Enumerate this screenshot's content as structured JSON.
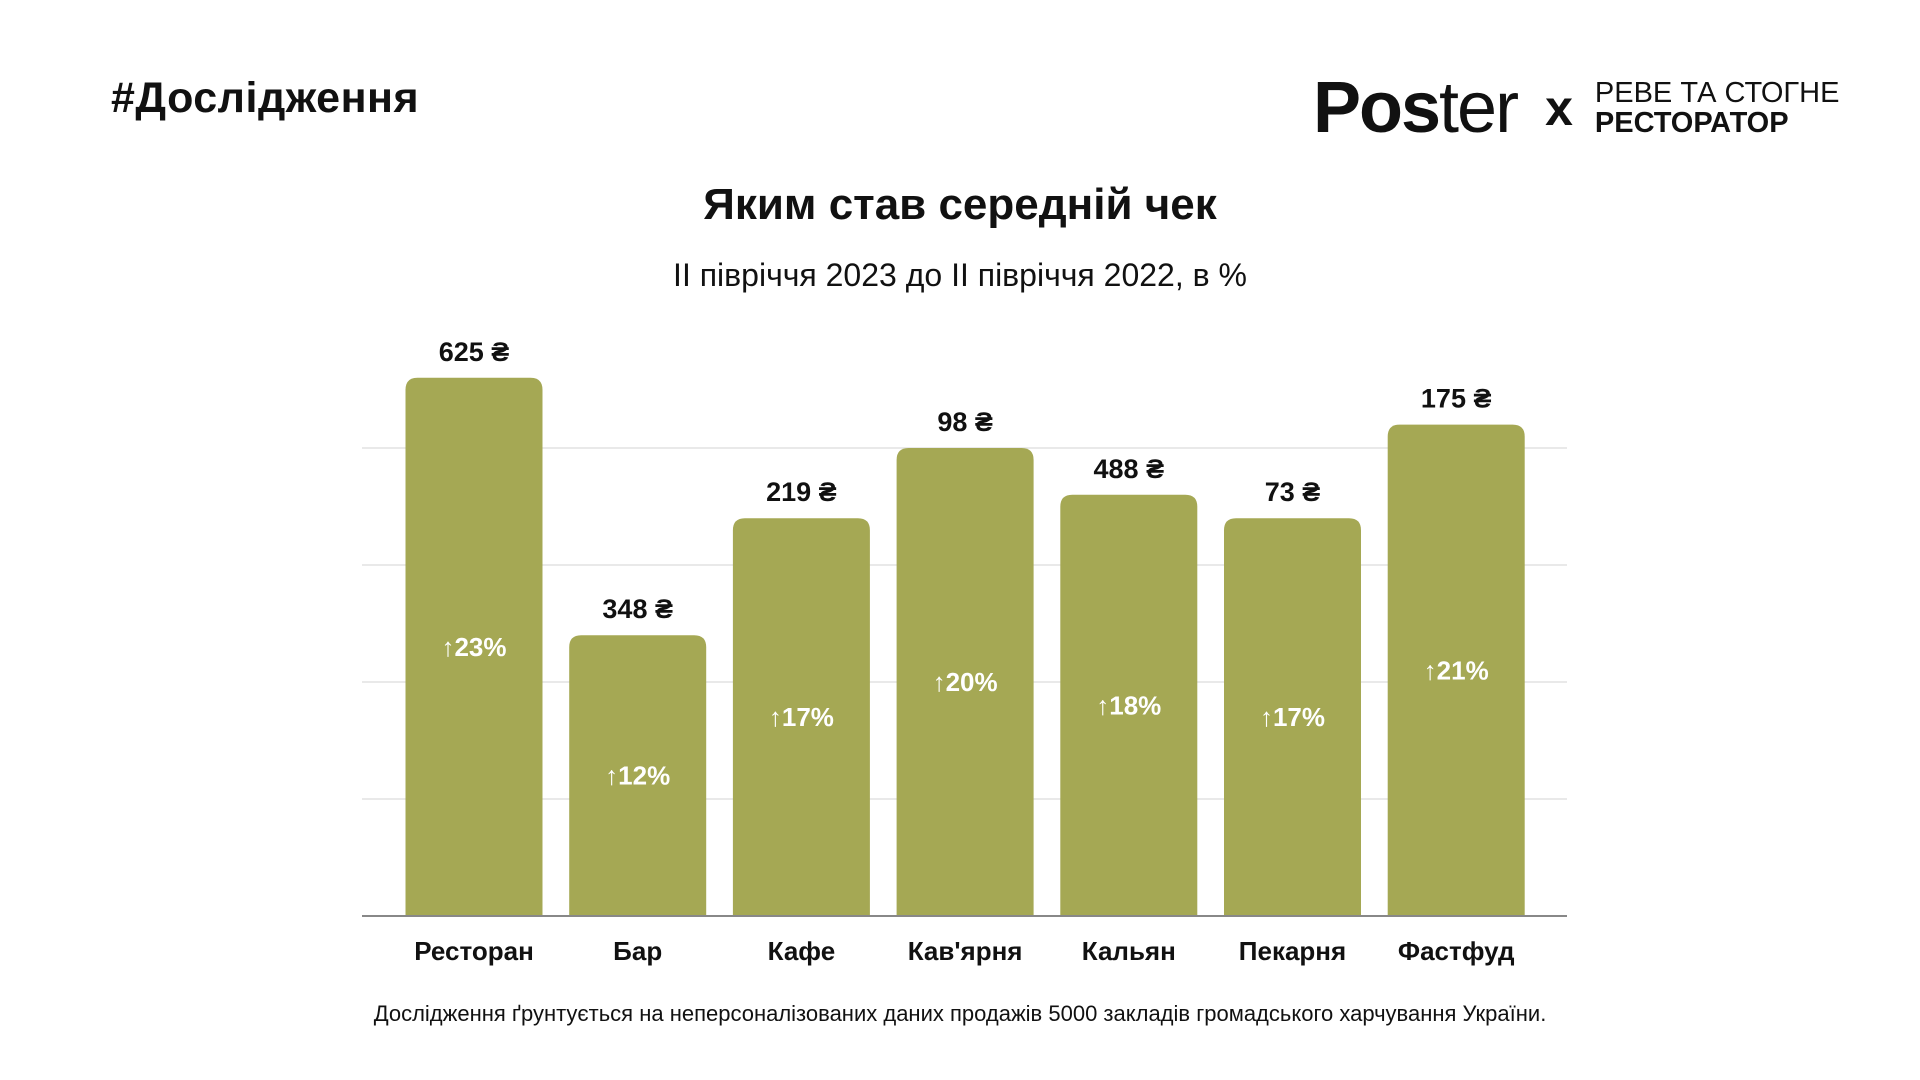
{
  "header": {
    "hashtag": "#Дослідження"
  },
  "logo": {
    "brand_bold": "Pos",
    "brand_light": "ter",
    "separator": "x",
    "partner_line1": "РЕВЕ ТА СТОГНЕ",
    "partner_line2": "РЕСТОРАТОР"
  },
  "footer": {
    "note": "Дослідження ґрунтується на неперсоналізованих даних продажів 5000 закладів громадського харчування України."
  },
  "chart_data": {
    "type": "bar",
    "title": "Яким став середній чек",
    "subtitle": "ІІ півріччя 2023 до ІІ півріччя 2022, в %",
    "categories": [
      "Ресторан",
      "Бар",
      "Кафе",
      "Кав'ярня",
      "Кальян",
      "Пекарня",
      "Фастфуд"
    ],
    "values": [
      23,
      12,
      17,
      20,
      18,
      17,
      21
    ],
    "value_labels": [
      "↑23%",
      "↑12%",
      "↑17%",
      "↑20%",
      "↑18%",
      "↑17%",
      "↑21%"
    ],
    "check_labels": [
      "625 ₴",
      "348 ₴",
      "219 ₴",
      "98 ₴",
      "488 ₴",
      "73 ₴",
      "175 ₴"
    ],
    "ylim": [
      0,
      25
    ],
    "gridlines": [
      5,
      10,
      15,
      20
    ],
    "xlabel": "",
    "ylabel": "",
    "bar_color": "#a5a854",
    "grid_color": "#e2e2e2",
    "axis_color": "#888888"
  }
}
